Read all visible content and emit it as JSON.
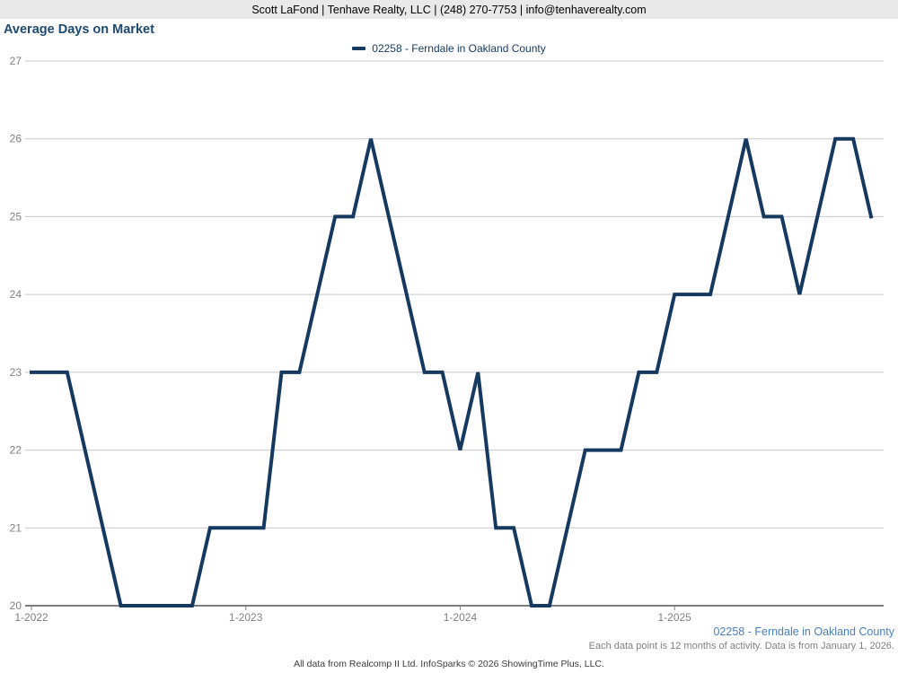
{
  "header": {
    "contact_line": "Scott LaFond | Tenhave Realty, LLC | (248) 270-7753 | info@tenhaverealty.com"
  },
  "title": "Average Days on Market",
  "legend": {
    "label": "02258 - Ferndale in Oakland County"
  },
  "footer": {
    "series_label": "02258 - Ferndale in Oakland County",
    "note": "Each data point is 12 months of activity. Data is from January 1, 2026.",
    "attribution": "All data from Realcomp II Ltd. InfoSparks © 2026 ShowingTime Plus, LLC."
  },
  "colors": {
    "line": "#16395f",
    "title": "#1f4a70",
    "legend_text": "#17395f",
    "series_label_blue": "#4d7fba",
    "grid": "#c8c8c8",
    "axis": "#7f7f7f",
    "tick_text": "#808080",
    "header_bg": "#e9e9e9",
    "header_text": "#000000",
    "attribution_text": "#3c3c3c"
  },
  "chart_data": {
    "type": "line",
    "title": "Average Days on Market",
    "xlabel": "",
    "ylabel": "",
    "ylim": [
      20,
      27
    ],
    "yticks": [
      20,
      21,
      22,
      23,
      24,
      25,
      26,
      27
    ],
    "xticks": [
      "1-2022",
      "1-2023",
      "1-2024",
      "1-2025"
    ],
    "grid": true,
    "legend_position": "top-center",
    "x": [
      "1-2022",
      "2-2022",
      "3-2022",
      "4-2022",
      "5-2022",
      "6-2022",
      "7-2022",
      "8-2022",
      "9-2022",
      "10-2022",
      "11-2022",
      "12-2022",
      "1-2023",
      "2-2023",
      "3-2023",
      "4-2023",
      "5-2023",
      "6-2023",
      "7-2023",
      "8-2023",
      "9-2023",
      "10-2023",
      "11-2023",
      "12-2023",
      "1-2024",
      "2-2024",
      "3-2024",
      "4-2024",
      "5-2024",
      "6-2024",
      "7-2024",
      "8-2024",
      "9-2024",
      "10-2024",
      "11-2024",
      "12-2024",
      "1-2025",
      "2-2025",
      "3-2025",
      "4-2025",
      "5-2025",
      "6-2025",
      "7-2025",
      "8-2025",
      "9-2025",
      "10-2025",
      "11-2025",
      "12-2025"
    ],
    "series": [
      {
        "name": "02258 - Ferndale in Oakland County",
        "values": [
          23,
          23,
          23,
          22,
          21,
          20,
          20,
          20,
          20,
          20,
          21,
          21,
          21,
          21,
          23,
          23,
          24,
          25,
          25,
          26,
          25,
          24,
          23,
          23,
          22,
          23,
          21,
          21,
          20,
          20,
          21,
          22,
          22,
          22,
          23,
          23,
          24,
          24,
          24,
          25,
          26,
          25,
          25,
          24,
          25,
          26,
          26,
          25
        ]
      }
    ]
  }
}
